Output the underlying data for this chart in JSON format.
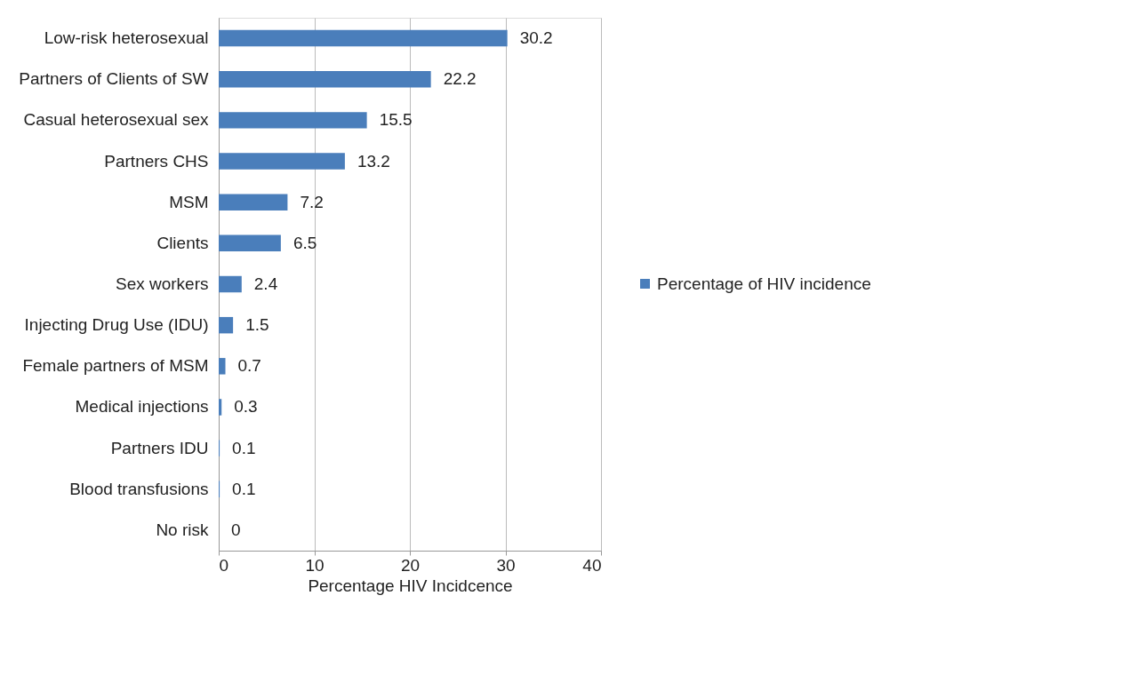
{
  "chart_data": {
    "type": "bar",
    "orientation": "horizontal",
    "xlabel": "Percentage HIV Incidcence",
    "categories": [
      "Low-risk heterosexual",
      "Partners of Clients of SW",
      "Casual heterosexual sex",
      "Partners CHS",
      "MSM",
      "Clients",
      "Sex workers",
      "Injecting Drug Use (IDU)",
      "Female partners of MSM",
      "Medical injections",
      "Partners IDU",
      "Blood transfusions",
      "No risk"
    ],
    "series": [
      {
        "name": "Percentage of HIV incidence",
        "color": "#4a7ebb",
        "values": [
          30.2,
          22.2,
          15.5,
          13.2,
          7.2,
          6.5,
          2.4,
          1.5,
          0.7,
          0.3,
          0.1,
          0.1,
          0
        ]
      }
    ],
    "xlim": [
      0,
      40
    ],
    "xticks": [
      0,
      10,
      20,
      30,
      40
    ],
    "grid": "x",
    "legend": "right",
    "data_labels": true
  }
}
